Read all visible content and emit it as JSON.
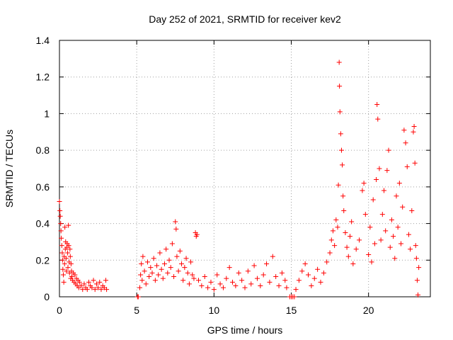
{
  "chart_data": {
    "type": "scatter",
    "title": "Day 252 of 2021, SRMTID for receiver kev2",
    "xlabel": "GPS time / hours",
    "ylabel": "SRMTID / TECUs",
    "xlim": [
      0,
      24
    ],
    "ylim": [
      0,
      1.4
    ],
    "xticks": [
      0,
      5,
      10,
      15,
      20
    ],
    "yticks": [
      0,
      0.2,
      0.4,
      0.6,
      0.8,
      1,
      1.2,
      1.4
    ],
    "xtick_labels": [
      "0",
      "5",
      "10",
      "15",
      "20"
    ],
    "ytick_labels": [
      "0",
      "0.2",
      "0.4",
      "0.6",
      "0.8",
      "1",
      "1.2",
      "1.4"
    ],
    "marker": "+",
    "color": "#ff0000",
    "grid": true,
    "legend": "none",
    "series": [
      {
        "name": "kev2",
        "points": [
          [
            0.0,
            0.52
          ],
          [
            0.03,
            0.47
          ],
          [
            0.05,
            0.44
          ],
          [
            0.08,
            0.4
          ],
          [
            0.1,
            0.36
          ],
          [
            0.12,
            0.32
          ],
          [
            0.15,
            0.28
          ],
          [
            0.18,
            0.24
          ],
          [
            0.2,
            0.2
          ],
          [
            0.22,
            0.15
          ],
          [
            0.25,
            0.12
          ],
          [
            0.28,
            0.08
          ],
          [
            0.3,
            0.22
          ],
          [
            0.33,
            0.18
          ],
          [
            0.35,
            0.38
          ],
          [
            0.38,
            0.26
          ],
          [
            0.4,
            0.3
          ],
          [
            0.43,
            0.21
          ],
          [
            0.45,
            0.14
          ],
          [
            0.48,
            0.27
          ],
          [
            0.5,
            0.29
          ],
          [
            0.53,
            0.24
          ],
          [
            0.55,
            0.16
          ],
          [
            0.58,
            0.39
          ],
          [
            0.6,
            0.28
          ],
          [
            0.63,
            0.19
          ],
          [
            0.65,
            0.13
          ],
          [
            0.68,
            0.26
          ],
          [
            0.7,
            0.22
          ],
          [
            0.73,
            0.1
          ],
          [
            0.75,
            0.18
          ],
          [
            0.78,
            0.14
          ],
          [
            0.8,
            0.11
          ],
          [
            0.85,
            0.09
          ],
          [
            0.9,
            0.13
          ],
          [
            0.95,
            0.08
          ],
          [
            1.0,
            0.12
          ],
          [
            1.05,
            0.07
          ],
          [
            1.1,
            0.1
          ],
          [
            1.15,
            0.06
          ],
          [
            1.2,
            0.09
          ],
          [
            1.25,
            0.05
          ],
          [
            1.3,
            0.08
          ],
          [
            1.4,
            0.06
          ],
          [
            1.5,
            0.04
          ],
          [
            1.6,
            0.07
          ],
          [
            1.7,
            0.05
          ],
          [
            1.8,
            0.04
          ],
          [
            1.9,
            0.08
          ],
          [
            2.0,
            0.06
          ],
          [
            2.1,
            0.05
          ],
          [
            2.2,
            0.09
          ],
          [
            2.3,
            0.04
          ],
          [
            2.4,
            0.07
          ],
          [
            2.5,
            0.05
          ],
          [
            2.6,
            0.08
          ],
          [
            2.7,
            0.04
          ],
          [
            2.8,
            0.06
          ],
          [
            2.9,
            0.05
          ],
          [
            3.0,
            0.09
          ],
          [
            3.05,
            0.04
          ],
          [
            5.05,
            0.0
          ],
          [
            5.1,
            0.0
          ],
          [
            5.2,
            0.05
          ],
          [
            5.25,
            0.12
          ],
          [
            5.3,
            0.18
          ],
          [
            5.35,
            0.09
          ],
          [
            5.4,
            0.22
          ],
          [
            5.5,
            0.14
          ],
          [
            5.6,
            0.07
          ],
          [
            5.7,
            0.19
          ],
          [
            5.8,
            0.11
          ],
          [
            5.9,
            0.16
          ],
          [
            6.0,
            0.13
          ],
          [
            6.1,
            0.21
          ],
          [
            6.2,
            0.09
          ],
          [
            6.3,
            0.17
          ],
          [
            6.4,
            0.12
          ],
          [
            6.5,
            0.24
          ],
          [
            6.6,
            0.15
          ],
          [
            6.7,
            0.1
          ],
          [
            6.8,
            0.18
          ],
          [
            6.9,
            0.26
          ],
          [
            7.0,
            0.13
          ],
          [
            7.1,
            0.2
          ],
          [
            7.2,
            0.16
          ],
          [
            7.3,
            0.29
          ],
          [
            7.4,
            0.11
          ],
          [
            7.5,
            0.41
          ],
          [
            7.55,
            0.37
          ],
          [
            7.6,
            0.22
          ],
          [
            7.7,
            0.14
          ],
          [
            7.8,
            0.25
          ],
          [
            7.9,
            0.18
          ],
          [
            8.0,
            0.09
          ],
          [
            8.1,
            0.16
          ],
          [
            8.2,
            0.21
          ],
          [
            8.3,
            0.13
          ],
          [
            8.4,
            0.07
          ],
          [
            8.5,
            0.19
          ],
          [
            8.6,
            0.12
          ],
          [
            8.7,
            0.1
          ],
          [
            8.8,
            0.35
          ],
          [
            8.85,
            0.33
          ],
          [
            8.9,
            0.34
          ],
          [
            9.0,
            0.09
          ],
          [
            9.2,
            0.06
          ],
          [
            9.4,
            0.11
          ],
          [
            9.6,
            0.05
          ],
          [
            9.8,
            0.08
          ],
          [
            10.0,
            0.04
          ],
          [
            10.2,
            0.12
          ],
          [
            10.4,
            0.07
          ],
          [
            10.6,
            0.05
          ],
          [
            10.8,
            0.1
          ],
          [
            11.0,
            0.16
          ],
          [
            11.2,
            0.08
          ],
          [
            11.4,
            0.06
          ],
          [
            11.6,
            0.13
          ],
          [
            11.8,
            0.09
          ],
          [
            12.0,
            0.05
          ],
          [
            12.2,
            0.14
          ],
          [
            12.4,
            0.07
          ],
          [
            12.6,
            0.17
          ],
          [
            12.8,
            0.1
          ],
          [
            13.0,
            0.06
          ],
          [
            13.2,
            0.12
          ],
          [
            13.4,
            0.18
          ],
          [
            13.6,
            0.08
          ],
          [
            13.8,
            0.22
          ],
          [
            14.0,
            0.11
          ],
          [
            14.2,
            0.06
          ],
          [
            14.4,
            0.13
          ],
          [
            14.6,
            0.09
          ],
          [
            14.7,
            0.05
          ],
          [
            14.9,
            0.0
          ],
          [
            15.0,
            0.0
          ],
          [
            15.1,
            0.0
          ],
          [
            15.2,
            0.0
          ],
          [
            15.3,
            0.04
          ],
          [
            15.5,
            0.09
          ],
          [
            15.7,
            0.14
          ],
          [
            15.9,
            0.18
          ],
          [
            16.1,
            0.12
          ],
          [
            16.3,
            0.06
          ],
          [
            16.5,
            0.1
          ],
          [
            16.7,
            0.15
          ],
          [
            16.9,
            0.08
          ],
          [
            17.1,
            0.13
          ],
          [
            17.3,
            0.19
          ],
          [
            17.5,
            0.24
          ],
          [
            17.6,
            0.31
          ],
          [
            17.7,
            0.36
          ],
          [
            17.8,
            0.28
          ],
          [
            17.9,
            0.42
          ],
          [
            18.0,
            0.38
          ],
          [
            18.05,
            0.61
          ],
          [
            18.1,
            1.28
          ],
          [
            18.12,
            1.15
          ],
          [
            18.15,
            1.01
          ],
          [
            18.2,
            0.89
          ],
          [
            18.25,
            0.8
          ],
          [
            18.3,
            0.72
          ],
          [
            18.35,
            0.55
          ],
          [
            18.4,
            0.47
          ],
          [
            18.5,
            0.35
          ],
          [
            18.6,
            0.27
          ],
          [
            18.7,
            0.22
          ],
          [
            18.8,
            0.33
          ],
          [
            18.9,
            0.41
          ],
          [
            19.0,
            0.18
          ],
          [
            19.2,
            0.26
          ],
          [
            19.4,
            0.31
          ],
          [
            19.6,
            0.58
          ],
          [
            19.7,
            0.62
          ],
          [
            19.8,
            0.45
          ],
          [
            20.0,
            0.23
          ],
          [
            20.1,
            0.38
          ],
          [
            20.2,
            0.19
          ],
          [
            20.3,
            0.53
          ],
          [
            20.4,
            0.29
          ],
          [
            20.5,
            0.64
          ],
          [
            20.55,
            1.05
          ],
          [
            20.6,
            0.97
          ],
          [
            20.7,
            0.7
          ],
          [
            20.8,
            0.31
          ],
          [
            20.9,
            0.45
          ],
          [
            21.0,
            0.58
          ],
          [
            21.1,
            0.36
          ],
          [
            21.2,
            0.69
          ],
          [
            21.3,
            0.8
          ],
          [
            21.4,
            0.27
          ],
          [
            21.5,
            0.42
          ],
          [
            21.6,
            0.33
          ],
          [
            21.7,
            0.21
          ],
          [
            21.8,
            0.55
          ],
          [
            21.9,
            0.38
          ],
          [
            22.0,
            0.62
          ],
          [
            22.1,
            0.29
          ],
          [
            22.2,
            0.49
          ],
          [
            22.3,
            0.91
          ],
          [
            22.4,
            0.84
          ],
          [
            22.5,
            0.71
          ],
          [
            22.6,
            0.34
          ],
          [
            22.7,
            0.26
          ],
          [
            22.8,
            0.47
          ],
          [
            22.9,
            0.9
          ],
          [
            22.95,
            0.93
          ],
          [
            23.0,
            0.73
          ],
          [
            23.05,
            0.28
          ],
          [
            23.1,
            0.21
          ],
          [
            23.15,
            0.09
          ],
          [
            23.2,
            0.01
          ],
          [
            23.25,
            0.16
          ]
        ]
      }
    ]
  }
}
